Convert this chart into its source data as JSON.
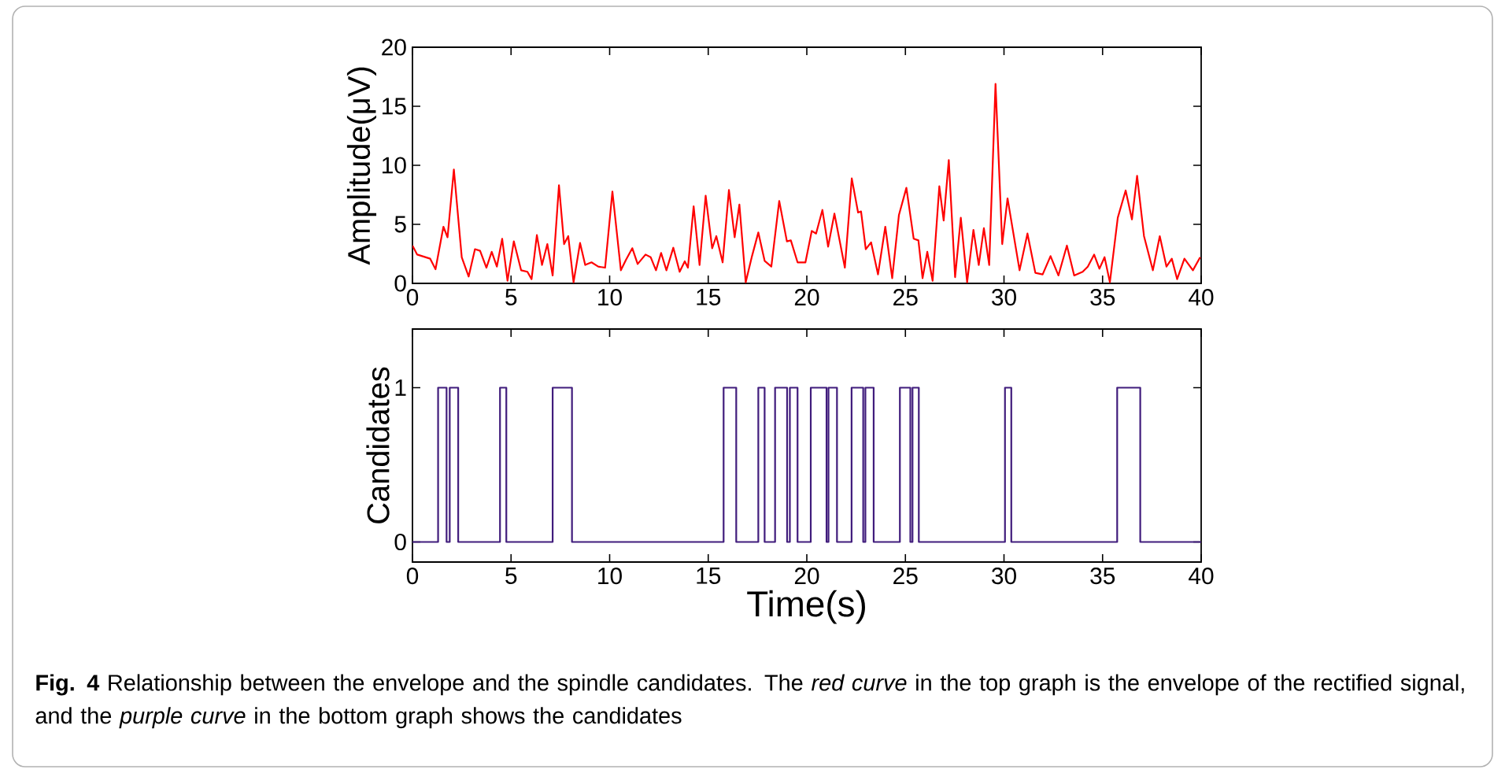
{
  "chart_data": [
    {
      "type": "line",
      "ylabel": "Amplitude(μV)",
      "xlim": [
        0,
        40
      ],
      "xticks": [
        0,
        5,
        10,
        15,
        20,
        25,
        30,
        35,
        40
      ],
      "ylim": [
        0,
        20
      ],
      "yticks": [
        0,
        5,
        10,
        15,
        20
      ],
      "series": [
        {
          "color": "#ff0000",
          "x": [
            0,
            0.24,
            0.9,
            1.17,
            1.57,
            1.78,
            2.1,
            2.5,
            2.85,
            3.17,
            3.43,
            3.75,
            4.02,
            4.28,
            4.55,
            4.82,
            5.14,
            5.51,
            5.83,
            6.04,
            6.31,
            6.57,
            6.84,
            7.11,
            7.43,
            7.69,
            7.9,
            8.17,
            8.5,
            8.76,
            9.08,
            9.42,
            9.77,
            10.14,
            10.57,
            10.83,
            11.15,
            11.42,
            11.82,
            12.08,
            12.35,
            12.61,
            12.88,
            13.23,
            13.55,
            13.81,
            13.97,
            14.26,
            14.56,
            14.87,
            15.2,
            15.41,
            15.73,
            16.05,
            16.34,
            16.58,
            16.9,
            17.22,
            17.54,
            17.86,
            18.2,
            18.6,
            18.99,
            19.19,
            19.53,
            19.93,
            20.25,
            20.47,
            20.79,
            21.08,
            21.4,
            21.93,
            22.28,
            22.6,
            22.75,
            22.99,
            23.26,
            23.61,
            23.98,
            24.33,
            24.67,
            25.05,
            25.42,
            25.66,
            25.87,
            26.11,
            26.38,
            26.72,
            26.94,
            27.2,
            27.52,
            27.81,
            28.13,
            28.45,
            28.72,
            28.98,
            29.25,
            29.57,
            29.91,
            30.18,
            30.79,
            31.19,
            31.59,
            31.96,
            32.36,
            32.76,
            33.19,
            33.56,
            33.99,
            34.25,
            34.57,
            34.84,
            35.1,
            35.37,
            35.77,
            36.17,
            36.49,
            36.75,
            37.1,
            37.55,
            37.9,
            38.24,
            38.51,
            38.78,
            39.15,
            39.58,
            39.95
          ],
          "values": [
            3.2,
            2.44,
            2.09,
            1.2,
            4.8,
            3.9,
            9.64,
            2.2,
            0.58,
            2.9,
            2.76,
            1.33,
            2.67,
            1.42,
            3.78,
            0.22,
            3.56,
            1.11,
            0.98,
            0.36,
            4.09,
            1.56,
            3.33,
            0.67,
            8.31,
            3.33,
            4.0,
            0.09,
            3.42,
            1.56,
            1.78,
            1.42,
            1.33,
            7.78,
            1.11,
            2.0,
            2.98,
            1.64,
            2.44,
            2.22,
            1.11,
            2.58,
            1.11,
            3.02,
            0.98,
            1.87,
            1.33,
            6.53,
            1.56,
            7.42,
            2.98,
            4.0,
            1.78,
            7.91,
            3.91,
            6.67,
            0.09,
            2.31,
            4.31,
            1.91,
            1.42,
            6.98,
            3.56,
            3.64,
            1.78,
            1.78,
            4.44,
            4.22,
            6.22,
            3.11,
            5.91,
            1.33,
            8.89,
            6.0,
            6.09,
            2.89,
            3.47,
            0.76,
            4.8,
            0.44,
            5.78,
            8.09,
            3.78,
            3.64,
            0.44,
            2.67,
            0.22,
            8.22,
            5.33,
            10.44,
            0.53,
            5.56,
            0.09,
            4.53,
            1.56,
            4.67,
            1.56,
            16.89,
            3.33,
            7.2,
            1.11,
            4.22,
            0.89,
            0.76,
            2.31,
            0.67,
            3.2,
            0.67,
            0.98,
            1.42,
            2.44,
            1.24,
            2.22,
            0.09,
            5.56,
            7.87,
            5.42,
            9.11,
            4.0,
            1.11,
            4.0,
            1.42,
            2.09,
            0.36,
            2.09,
            1.11,
            2.22
          ]
        }
      ]
    },
    {
      "type": "step",
      "xlabel": "Time(s)",
      "ylabel": "Candidates",
      "xlim": [
        0,
        40
      ],
      "xticks": [
        0,
        5,
        10,
        15,
        20,
        25,
        30,
        35,
        40
      ],
      "ylim": [
        -0.13,
        1.38
      ],
      "yticks": [
        0,
        1
      ],
      "series": [
        {
          "color": "#401c7c",
          "x": [
            0,
            1.3,
            1.73,
            1.89,
            2.32,
            4.44,
            4.76,
            7.11,
            8.09,
            15.78,
            16.42,
            17.54,
            17.86,
            18.39,
            19.0,
            19.14,
            19.53,
            20.2,
            21.0,
            21.1,
            21.53,
            22.27,
            22.86,
            22.97,
            23.39,
            24.72,
            25.25,
            25.36,
            25.68,
            30.05,
            30.37,
            35.74,
            36.91,
            40
          ],
          "values": [
            0,
            1,
            0,
            1,
            0,
            1,
            0,
            1,
            0,
            1,
            0,
            1,
            0,
            1,
            0,
            1,
            0,
            1,
            0,
            1,
            0,
            1,
            0,
            1,
            0,
            1,
            0,
            1,
            0,
            1,
            0,
            1,
            0,
            0
          ]
        }
      ],
      "annotations": [
        "**Fig. 4**  Relationship between the envelope and the spindle candidates. The *red curve* in the top graph is the envelope of the rectified signal, and the *purple curve* in the bottom graph shows the candidates"
      ]
    }
  ]
}
